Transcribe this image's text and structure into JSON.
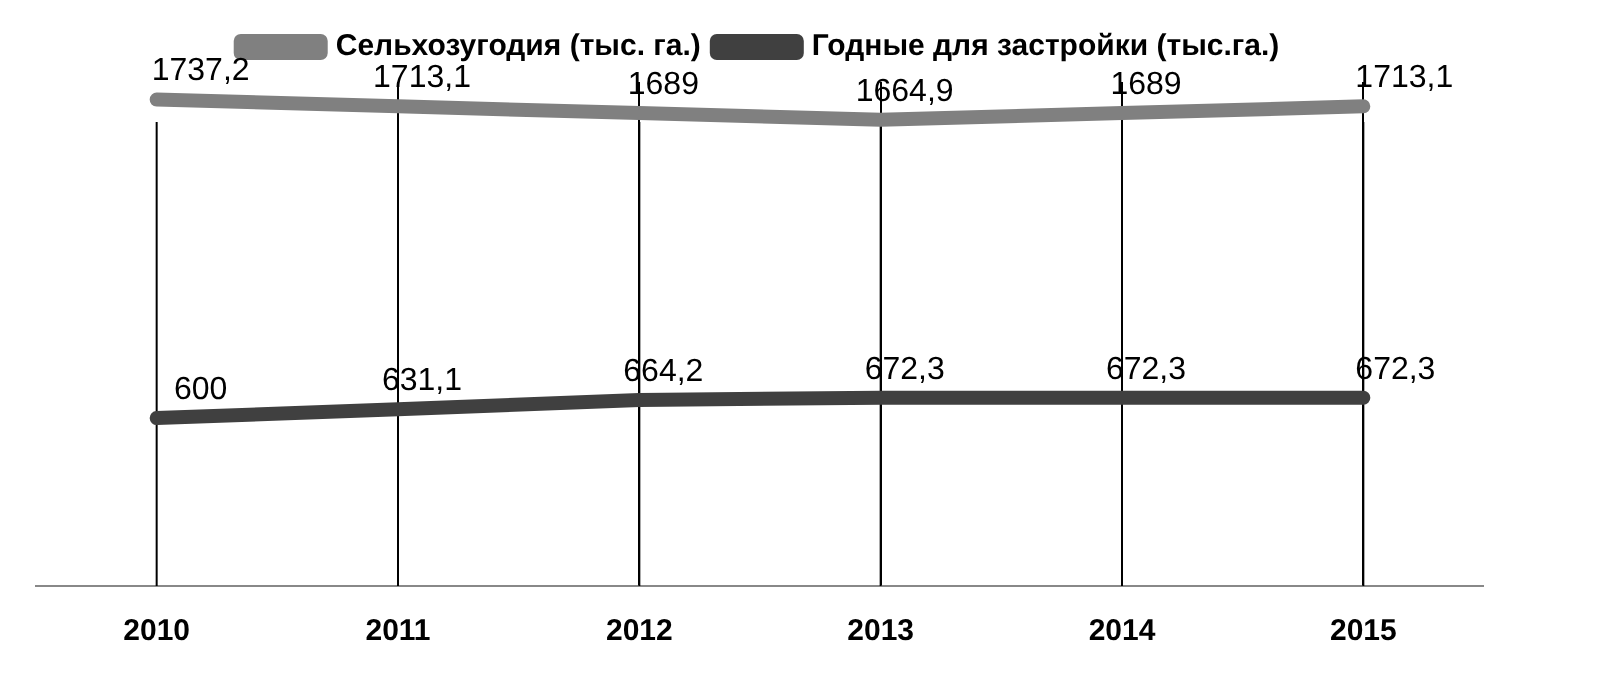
{
  "chart_data": {
    "type": "line",
    "categories": [
      "2010",
      "2011",
      "2012",
      "2013",
      "2014",
      "2015"
    ],
    "series": [
      {
        "name": "Сельхозугодия (тыс. га.)",
        "color": "#808080",
        "values": [
          1737.2,
          1713.1,
          1689,
          1664.9,
          1689,
          1713.1
        ],
        "value_labels": [
          "1737,2",
          "1713,1",
          "1689",
          "1664,9",
          "1689",
          "1713,1"
        ]
      },
      {
        "name": "Годные для застройки (тыс.га.)",
        "color": "#404040",
        "values": [
          600,
          631.1,
          664.2,
          672.3,
          672.3,
          672.3
        ],
        "value_labels": [
          "600",
          "631,1",
          "664,2",
          "672,3",
          "672,3",
          "672,3"
        ]
      }
    ],
    "grid": "x",
    "legend": "top",
    "marker": "none",
    "line_style": "solid",
    "tick_labels": "x"
  }
}
